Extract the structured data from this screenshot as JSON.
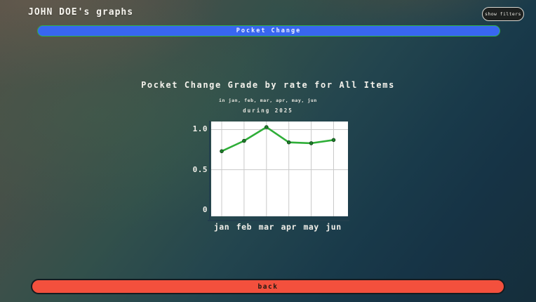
{
  "header": {
    "title": "JOHN DOE's graphs",
    "show_filters_label": "show filters"
  },
  "nav": {
    "selected_graph_label": "Pocket Change"
  },
  "chart": {
    "title": "Pocket Change Grade by rate for All Items",
    "subtitle": "in jan, feb, mar, apr, may, jun",
    "period": "during 2025"
  },
  "chart_data": {
    "type": "line",
    "categories": [
      "jan",
      "feb",
      "mar",
      "apr",
      "may",
      "jun"
    ],
    "values": [
      0.73,
      0.86,
      1.03,
      0.84,
      0.83,
      0.87
    ],
    "title": "Pocket Change Grade by rate for All Items",
    "xlabel": "",
    "ylabel": "",
    "ylim": [
      -0.08,
      1.1
    ],
    "yticks": [
      0,
      0.5,
      1.0
    ],
    "ytick_labels": [
      "0",
      "0.5",
      "1.0"
    ],
    "grid": true,
    "legend": "none",
    "line_color": "#2fae38",
    "marker_color": "#1d7c2a",
    "plot_background": "#ffffff",
    "gridline_color": "#c9c9c9"
  },
  "footer": {
    "back_label": "back"
  },
  "colors": {
    "accent_blue": "#3866f0",
    "accent_green": "#2fb04a",
    "accent_red": "#f3503d",
    "axis_line": "#223f4d"
  }
}
